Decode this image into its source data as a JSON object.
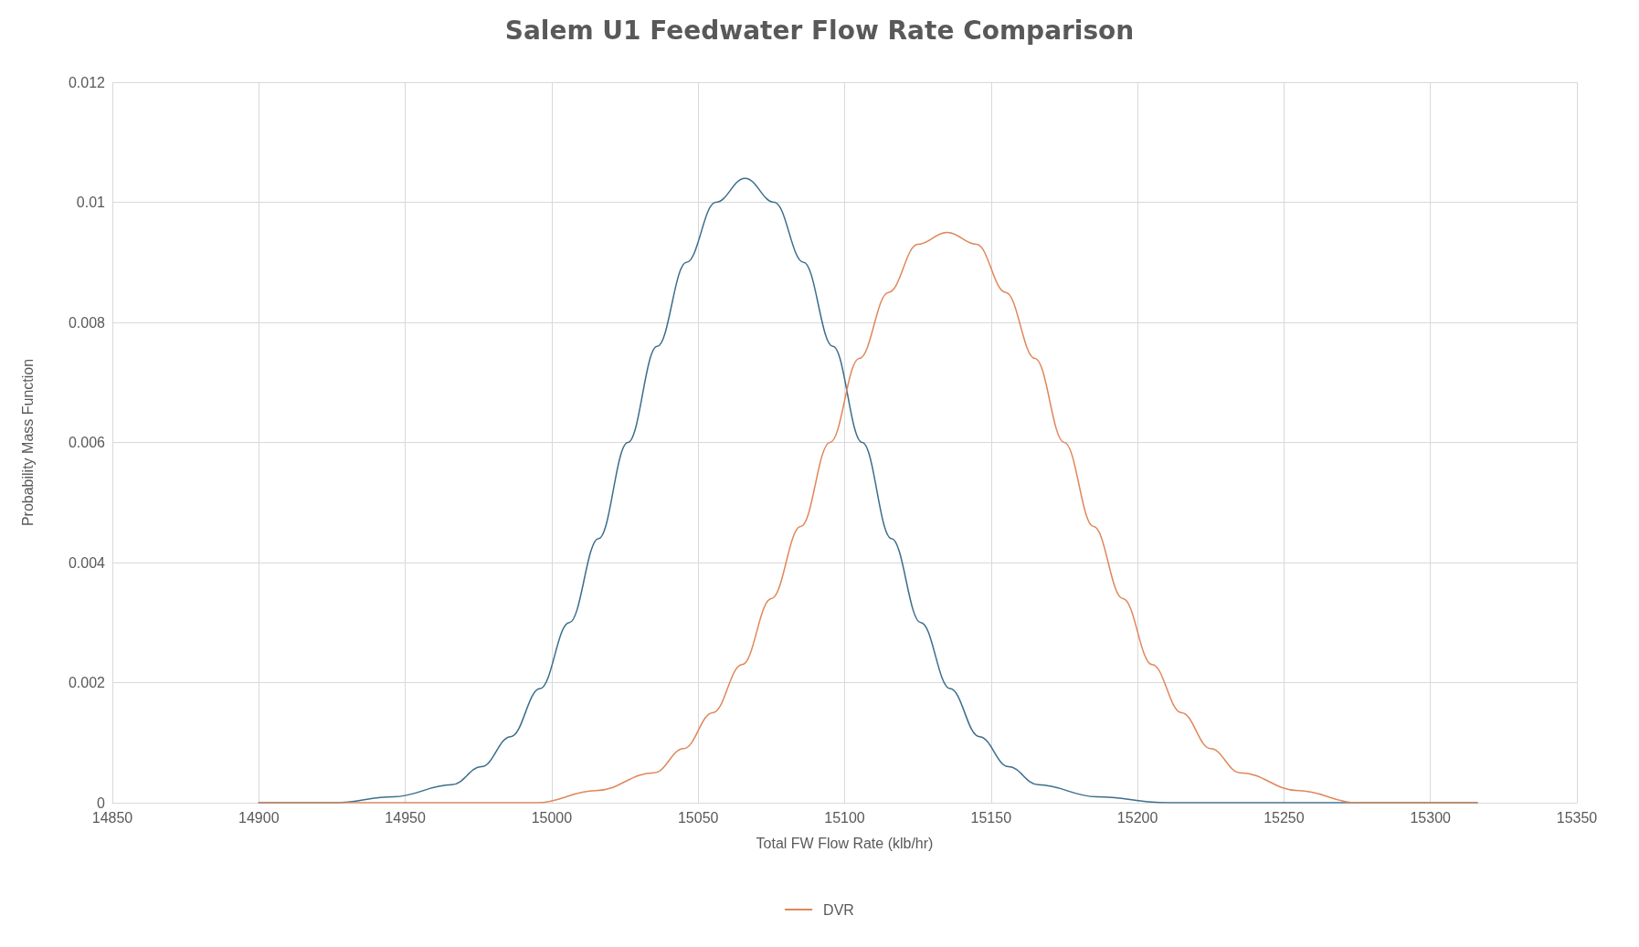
{
  "chart_data": {
    "type": "line",
    "title": "Salem U1 Feedwater Flow Rate Comparison",
    "xlabel": "Total FW Flow Rate (klb/hr)",
    "ylabel": "Probability Mass Function",
    "xlim": [
      14850,
      15350
    ],
    "xticks": [
      14850,
      14900,
      14950,
      15000,
      15050,
      15100,
      15150,
      15200,
      15250,
      15300,
      15350
    ],
    "ylim": [
      0,
      0.012
    ],
    "yticks": [
      0,
      0.002,
      0.004,
      0.006,
      0.008,
      0.01,
      0.012
    ],
    "grid": true,
    "legend": "bottom",
    "marker": "none",
    "line_style": "solid",
    "series": [
      {
        "color": "#3c6e8c",
        "x": [
          14900,
          14926,
          14946,
          14966,
          14976,
          14986,
          14996,
          15006,
          15016,
          15026,
          15036,
          15046,
          15056,
          15066,
          15076,
          15086,
          15096,
          15106,
          15116,
          15126,
          15136,
          15146,
          15156,
          15166,
          15186,
          15210,
          15316
        ],
        "values": [
          0,
          0,
          0.0001,
          0.0003,
          0.0006,
          0.0011,
          0.0019,
          0.003,
          0.0044,
          0.006,
          0.0076,
          0.009,
          0.01,
          0.0104,
          0.01,
          0.009,
          0.0076,
          0.006,
          0.0044,
          0.003,
          0.0019,
          0.0011,
          0.0006,
          0.0003,
          0.0001,
          0,
          0
        ]
      },
      {
        "name": "DVR",
        "color": "#e0875a",
        "x": [
          14900,
          14995,
          15015,
          15035,
          15045,
          15055,
          15065,
          15075,
          15085,
          15095,
          15105,
          15115,
          15125,
          15135,
          15145,
          15155,
          15165,
          15175,
          15185,
          15195,
          15205,
          15215,
          15225,
          15235,
          15255,
          15275,
          15316
        ],
        "values": [
          0,
          0,
          0.0002,
          0.0005,
          0.0009,
          0.0015,
          0.0023,
          0.0034,
          0.0046,
          0.006,
          0.0074,
          0.0085,
          0.0093,
          0.0095,
          0.0093,
          0.0085,
          0.0074,
          0.006,
          0.0046,
          0.0034,
          0.0023,
          0.0015,
          0.0009,
          0.0005,
          0.0002,
          0,
          0
        ]
      }
    ]
  }
}
